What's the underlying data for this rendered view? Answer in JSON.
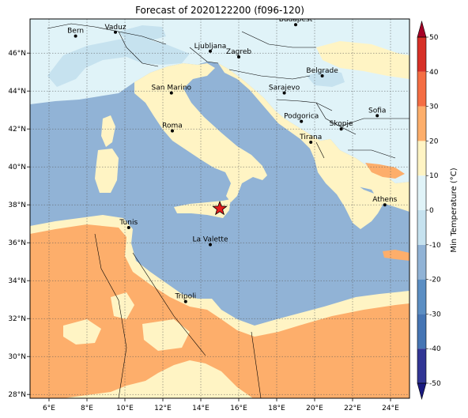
{
  "title": "Forecast of 2020122200 (f096-120)",
  "map": {
    "lon_range": [
      5,
      25
    ],
    "lat_range": [
      27.8,
      47.8
    ],
    "lon_ticks": [
      "6°E",
      "8°E",
      "10°E",
      "12°E",
      "14°E",
      "16°E",
      "18°E",
      "20°E",
      "22°E",
      "24°E"
    ],
    "lat_ticks": [
      "28°N",
      "30°N",
      "32°N",
      "34°N",
      "36°N",
      "38°N",
      "40°N",
      "42°N",
      "44°N",
      "46°N"
    ],
    "sea_color": "#91b3d6",
    "marker": {
      "shape": "red-star",
      "lon": 15.0,
      "lat": 37.8,
      "color": "#e41a1c"
    },
    "cities": [
      {
        "name": "Bern",
        "lon": 7.4,
        "lat": 46.9
      },
      {
        "name": "Vaduz",
        "lon": 9.5,
        "lat": 47.1
      },
      {
        "name": "Budapest",
        "lon": 19.0,
        "lat": 47.5
      },
      {
        "name": "Ljubljana",
        "lon": 14.5,
        "lat": 46.1
      },
      {
        "name": "Zagreb",
        "lon": 16.0,
        "lat": 45.8
      },
      {
        "name": "Belgrade",
        "lon": 20.4,
        "lat": 44.8
      },
      {
        "name": "San Marino",
        "lon": 12.45,
        "lat": 43.9
      },
      {
        "name": "Sarajevo",
        "lon": 18.4,
        "lat": 43.9
      },
      {
        "name": "Sofia",
        "lon": 23.3,
        "lat": 42.7
      },
      {
        "name": "Podgorica",
        "lon": 19.3,
        "lat": 42.4
      },
      {
        "name": "Skopje",
        "lon": 21.4,
        "lat": 42.0
      },
      {
        "name": "Roma",
        "lon": 12.5,
        "lat": 41.9
      },
      {
        "name": "Tirana",
        "lon": 19.8,
        "lat": 41.3
      },
      {
        "name": "Athens",
        "lon": 23.7,
        "lat": 38.0
      },
      {
        "name": "Tunis",
        "lon": 10.2,
        "lat": 36.8
      },
      {
        "name": "La Valette",
        "lon": 14.5,
        "lat": 35.9
      },
      {
        "name": "Tripoli",
        "lon": 13.2,
        "lat": 32.9
      }
    ]
  },
  "colorbar": {
    "label": "Min Temperature (°C)",
    "min": -50,
    "max": 50,
    "ticks": [
      "-50",
      "-40",
      "-30",
      "-20",
      "-10",
      "0",
      "10",
      "20",
      "30",
      "40",
      "50"
    ],
    "bands": [
      {
        "from": -50,
        "to": -40,
        "color": "#313695"
      },
      {
        "from": -40,
        "to": -30,
        "color": "#4575b4"
      },
      {
        "from": -30,
        "to": -20,
        "color": "#5b8ec3"
      },
      {
        "from": -20,
        "to": -10,
        "color": "#91b3d6"
      },
      {
        "from": -10,
        "to": 0,
        "color": "#c6e2ef"
      },
      {
        "from": 0,
        "to": 10,
        "color": "#e0f3f8"
      },
      {
        "from": 10,
        "to": 20,
        "color": "#fff4c4"
      },
      {
        "from": 20,
        "to": 30,
        "color": "#fdae6b"
      },
      {
        "from": 30,
        "to": 40,
        "color": "#f46d43"
      },
      {
        "from": 40,
        "to": 50,
        "color": "#d73027"
      }
    ],
    "extend_low_color": "#1a1a80",
    "extend_high_color": "#a50026"
  }
}
